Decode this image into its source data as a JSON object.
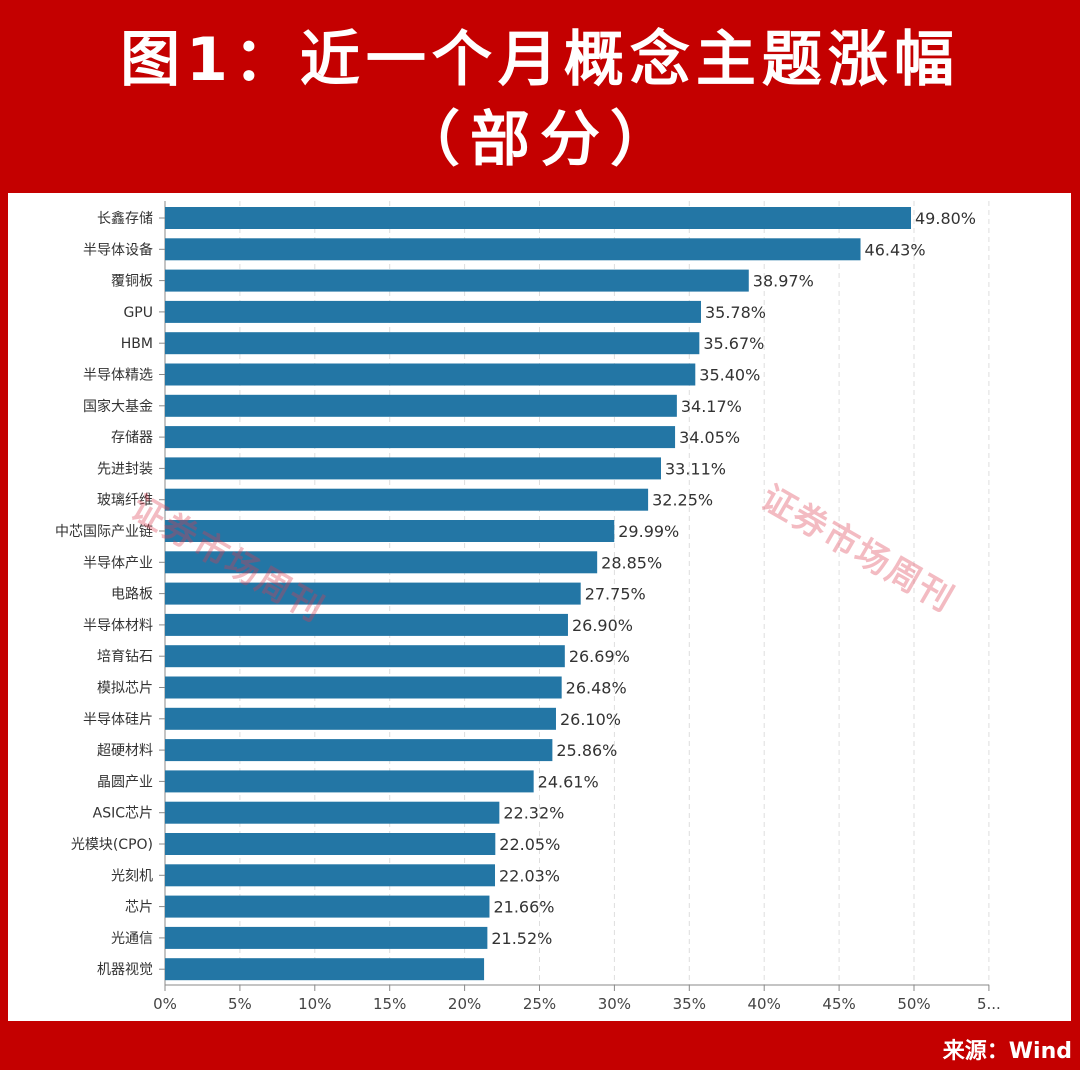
{
  "title": {
    "line1": "图1：近一个月概念主题涨幅",
    "line2": "（部分）"
  },
  "watermark": "证券市场周刊",
  "source": "来源：Wind",
  "colors": {
    "background": "#c40000",
    "bar": "#2376a5",
    "panel": "#ffffff"
  },
  "chart_data": {
    "type": "bar",
    "orientation": "horizontal",
    "categories": [
      "长鑫存储",
      "半导体设备",
      "覆铜板",
      "GPU",
      "HBM",
      "半导体精选",
      "国家大基金",
      "存储器",
      "先进封装",
      "玻璃纤维",
      "中芯国际产业链",
      "半导体产业",
      "电路板",
      "半导体材料",
      "培育钻石",
      "模拟芯片",
      "半导体硅片",
      "超硬材料",
      "晶圆产业",
      "ASIC芯片",
      "光模块(CPO)",
      "光刻机",
      "芯片",
      "光通信",
      "机器视觉"
    ],
    "values": [
      49.8,
      46.43,
      38.97,
      35.78,
      35.67,
      35.4,
      34.17,
      34.05,
      33.11,
      32.25,
      29.99,
      28.85,
      27.75,
      26.9,
      26.69,
      26.48,
      26.1,
      25.86,
      24.61,
      22.32,
      22.05,
      22.03,
      21.66,
      21.52,
      21.3
    ],
    "data_labels": [
      "49.80%",
      "46.43%",
      "38.97%",
      "35.78%",
      "35.67%",
      "35.40%",
      "34.17%",
      "34.05%",
      "33.11%",
      "32.25%",
      "29.99%",
      "28.85%",
      "27.75%",
      "26.90%",
      "26.69%",
      "26.48%",
      "26.10%",
      "25.86%",
      "24.61%",
      "22.32%",
      "22.05%",
      "22.03%",
      "21.66%",
      "21.52%",
      ""
    ],
    "x_ticks": [
      "0%",
      "5%",
      "10%",
      "15%",
      "20%",
      "25%",
      "30%",
      "35%",
      "40%",
      "45%",
      "50%",
      "5..."
    ],
    "xlim": [
      0,
      55
    ],
    "grid": "vertical dashed"
  }
}
